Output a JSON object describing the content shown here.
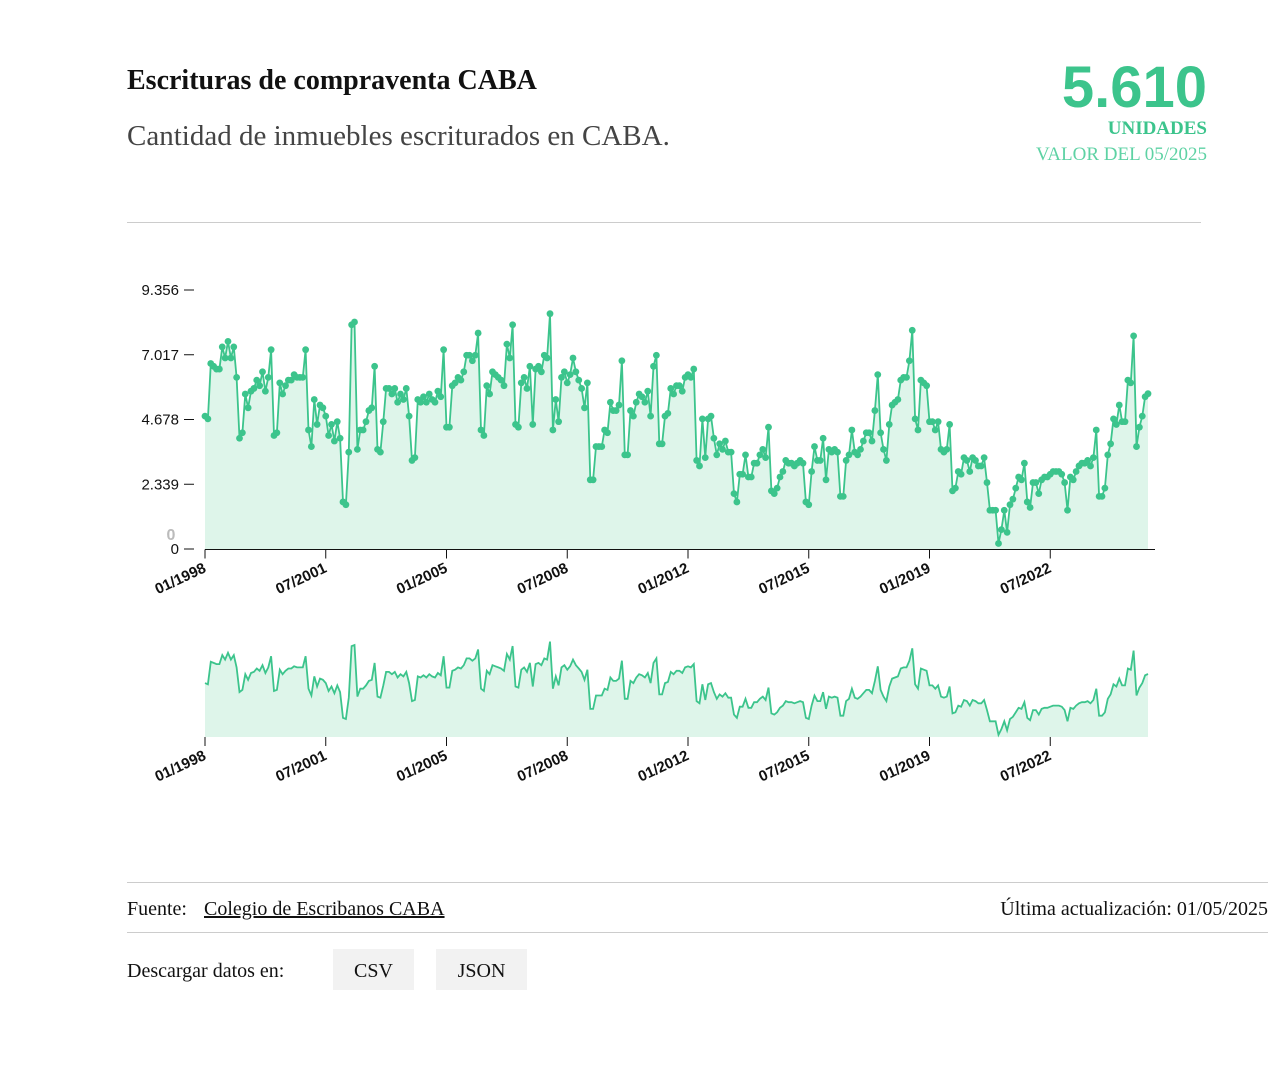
{
  "header": {
    "title": "Escrituras de compraventa CABA",
    "subtitle": "Cantidad de inmuebles escriturados en CABA.",
    "latest_value": {
      "value": 5610,
      "label": "5.610"
    },
    "unit": "UNIDADES",
    "date_note": "VALOR DEL 05/2025"
  },
  "chart_data": {
    "type": "line",
    "color": "#3cc48c",
    "area_color": "#def5ea",
    "markers": true,
    "hover_label": "0",
    "x": [
      "01/1998",
      "02/1998",
      "03/1998",
      "04/1998",
      "05/1998",
      "06/1998",
      "07/1998",
      "08/1998",
      "09/1998",
      "10/1998",
      "11/1998",
      "12/1998",
      "01/1999",
      "02/1999",
      "03/1999",
      "04/1999",
      "05/1999",
      "06/1999",
      "07/1999",
      "08/1999",
      "09/1999",
      "10/1999",
      "11/1999",
      "12/1999",
      "01/2000",
      "02/2000",
      "03/2000",
      "04/2000",
      "05/2000",
      "06/2000",
      "07/2000",
      "08/2000",
      "09/2000",
      "10/2000",
      "11/2000",
      "12/2000",
      "01/2001",
      "02/2001",
      "03/2001",
      "04/2001",
      "05/2001",
      "06/2001",
      "07/2001",
      "08/2001",
      "09/2001",
      "10/2001",
      "11/2001",
      "12/2001",
      "01/2002",
      "02/2002",
      "03/2002",
      "04/2002",
      "05/2002",
      "06/2002",
      "07/2002",
      "08/2002",
      "09/2002",
      "10/2002",
      "11/2002",
      "12/2002",
      "01/2003",
      "02/2003",
      "03/2003",
      "04/2003",
      "05/2003",
      "06/2003",
      "07/2003",
      "08/2003",
      "09/2003",
      "10/2003",
      "11/2003",
      "12/2003",
      "01/2004",
      "02/2004",
      "03/2004",
      "04/2004",
      "05/2004",
      "06/2004",
      "07/2004",
      "08/2004",
      "09/2004",
      "10/2004",
      "11/2004",
      "12/2004",
      "01/2005",
      "02/2005",
      "03/2005",
      "04/2005",
      "05/2005",
      "06/2005",
      "07/2005",
      "08/2005",
      "09/2005",
      "10/2005",
      "11/2005",
      "12/2005",
      "01/2006",
      "02/2006",
      "03/2006",
      "04/2006",
      "05/2006",
      "06/2006",
      "07/2006",
      "08/2006",
      "09/2006",
      "10/2006",
      "11/2006",
      "12/2006",
      "01/2007",
      "02/2007",
      "03/2007",
      "04/2007",
      "05/2007",
      "06/2007",
      "07/2007",
      "08/2007",
      "09/2007",
      "10/2007",
      "11/2007",
      "12/2007",
      "01/2008",
      "02/2008",
      "03/2008",
      "04/2008",
      "05/2008",
      "06/2008",
      "07/2008",
      "08/2008",
      "09/2008",
      "10/2008",
      "11/2008",
      "12/2008",
      "01/2009",
      "02/2009",
      "03/2009",
      "04/2009",
      "05/2009",
      "06/2009",
      "07/2009",
      "08/2009",
      "09/2009",
      "10/2009",
      "11/2009",
      "12/2009",
      "01/2010",
      "02/2010",
      "03/2010",
      "04/2010",
      "05/2010",
      "06/2010",
      "07/2010",
      "08/2010",
      "09/2010",
      "10/2010",
      "11/2010",
      "12/2010",
      "01/2011",
      "02/2011",
      "03/2011",
      "04/2011",
      "05/2011",
      "06/2011",
      "07/2011",
      "08/2011",
      "09/2011",
      "10/2011",
      "11/2011",
      "12/2011",
      "01/2012",
      "02/2012",
      "03/2012",
      "04/2012",
      "05/2012",
      "06/2012",
      "07/2012",
      "08/2012",
      "09/2012",
      "10/2012",
      "11/2012",
      "12/2012",
      "01/2013",
      "02/2013",
      "03/2013",
      "04/2013",
      "05/2013",
      "06/2013",
      "07/2013",
      "08/2013",
      "09/2013",
      "10/2013",
      "11/2013",
      "12/2013",
      "01/2014",
      "02/2014",
      "03/2014",
      "04/2014",
      "05/2014",
      "06/2014",
      "07/2014",
      "08/2014",
      "09/2014",
      "10/2014",
      "11/2014",
      "12/2014",
      "01/2015",
      "02/2015",
      "03/2015",
      "04/2015",
      "05/2015",
      "06/2015",
      "07/2015",
      "08/2015",
      "09/2015",
      "10/2015",
      "11/2015",
      "12/2015",
      "01/2016",
      "02/2016",
      "03/2016",
      "04/2016",
      "05/2016",
      "06/2016",
      "07/2016",
      "08/2016",
      "09/2016",
      "10/2016",
      "11/2016",
      "12/2016",
      "01/2017",
      "02/2017",
      "03/2017",
      "04/2017",
      "05/2017",
      "06/2017",
      "07/2017",
      "08/2017",
      "09/2017",
      "10/2017",
      "11/2017",
      "12/2017",
      "01/2018",
      "02/2018",
      "03/2018",
      "04/2018",
      "05/2018",
      "06/2018",
      "07/2018",
      "08/2018",
      "09/2018",
      "10/2018",
      "11/2018",
      "12/2018",
      "01/2019",
      "02/2019",
      "03/2019",
      "04/2019",
      "05/2019",
      "06/2019",
      "07/2019",
      "08/2019",
      "09/2019",
      "10/2019",
      "11/2019",
      "12/2019",
      "01/2020",
      "02/2020",
      "03/2020",
      "04/2020",
      "05/2020",
      "06/2020",
      "07/2020",
      "08/2020",
      "09/2020",
      "10/2020",
      "11/2020",
      "12/2020",
      "01/2021",
      "02/2021",
      "03/2021",
      "04/2021",
      "05/2021",
      "06/2021",
      "07/2021",
      "08/2021",
      "09/2021",
      "10/2021",
      "11/2021",
      "12/2021",
      "01/2022",
      "02/2022",
      "03/2022",
      "04/2022",
      "05/2022",
      "06/2022",
      "07/2022",
      "08/2022",
      "09/2022",
      "10/2022",
      "11/2022",
      "12/2022",
      "01/2023",
      "02/2023",
      "03/2023",
      "04/2023",
      "05/2023",
      "06/2023",
      "07/2023",
      "08/2023",
      "09/2023",
      "10/2023",
      "11/2023",
      "12/2023",
      "01/2024",
      "02/2024",
      "03/2024",
      "04/2024",
      "05/2024",
      "06/2024",
      "07/2024",
      "08/2024",
      "09/2024",
      "10/2024",
      "11/2024",
      "12/2024",
      "01/2025",
      "02/2025",
      "03/2025",
      "04/2025",
      "05/2025"
    ],
    "values": [
      4800,
      4700,
      6700,
      6600,
      6500,
      6500,
      7300,
      6900,
      7500,
      6900,
      7300,
      6200,
      4000,
      4200,
      5600,
      5100,
      5700,
      5800,
      6100,
      5900,
      6400,
      5700,
      6200,
      7200,
      4100,
      4200,
      6000,
      5600,
      5900,
      6100,
      6100,
      6300,
      6200,
      6200,
      6200,
      7200,
      4300,
      3700,
      5400,
      4500,
      5200,
      5100,
      4800,
      4100,
      4500,
      3900,
      4600,
      4000,
      1700,
      1600,
      3500,
      8100,
      8200,
      3600,
      4300,
      4300,
      4600,
      5000,
      5100,
      6600,
      3600,
      3500,
      4600,
      5800,
      5800,
      5600,
      5800,
      5300,
      5600,
      5400,
      5800,
      4800,
      3200,
      3300,
      5400,
      5300,
      5500,
      5300,
      5600,
      5400,
      5300,
      5700,
      5500,
      7200,
      4400,
      4400,
      5900,
      6000,
      6200,
      6100,
      6400,
      7000,
      7000,
      6800,
      7000,
      7800,
      4300,
      4100,
      5900,
      5600,
      6400,
      6300,
      6200,
      6100,
      5900,
      7400,
      6900,
      8100,
      4500,
      4400,
      6000,
      6200,
      5800,
      6600,
      4500,
      6500,
      6600,
      6400,
      7000,
      6900,
      8500,
      4300,
      5400,
      4600,
      6200,
      6400,
      6000,
      6300,
      6900,
      6400,
      6100,
      5800,
      5100,
      6000,
      2500,
      2500,
      3700,
      3700,
      3700,
      4300,
      4200,
      5300,
      5000,
      5000,
      5200,
      6800,
      3400,
      3400,
      5000,
      4800,
      5300,
      5600,
      5500,
      5300,
      5700,
      4800,
      6600,
      7000,
      3800,
      3800,
      4800,
      4900,
      5800,
      5600,
      5900,
      5900,
      5700,
      6200,
      6300,
      6200,
      6500,
      3200,
      3000,
      4700,
      3300,
      4700,
      4800,
      4000,
      3400,
      3800,
      3600,
      3900,
      3500,
      3500,
      2000,
      1700,
      2700,
      2700,
      3400,
      2600,
      2600,
      3100,
      3100,
      3400,
      3600,
      3300,
      4400,
      2100,
      2000,
      2200,
      2600,
      2800,
      3200,
      3100,
      3100,
      3000,
      3100,
      3200,
      3100,
      1700,
      1600,
      2800,
      3700,
      3200,
      3200,
      4000,
      2500,
      3600,
      3500,
      3600,
      3500,
      1900,
      1900,
      3200,
      3400,
      4300,
      3500,
      3400,
      3600,
      3900,
      4200,
      4200,
      3900,
      5000,
      6300,
      4200,
      3600,
      3200,
      4500,
      5200,
      5300,
      5400,
      6100,
      6200,
      6200,
      6800,
      7900,
      4700,
      4300,
      6100,
      6000,
      5900,
      4600,
      4600,
      4300,
      4600,
      3600,
      3500,
      3600,
      4500,
      2100,
      2200,
      2800,
      2700,
      3300,
      3200,
      2800,
      3300,
      3200,
      3000,
      3000,
      3300,
      2400,
      1400,
      1400,
      1400,
      200,
      700,
      1400,
      600,
      1600,
      1800,
      2200,
      2600,
      2500,
      3100,
      1700,
      1500,
      2400,
      2400,
      2000,
      2500,
      2600,
      2600,
      2700,
      2800,
      2800,
      2800,
      2700,
      2400,
      1400,
      2600,
      2500,
      2800,
      3000,
      3100,
      3100,
      3200,
      3000,
      3300,
      4300,
      1900,
      1900,
      2200,
      3400,
      3800,
      4700,
      4500,
      5200,
      4600,
      4600,
      6100,
      6000,
      7700,
      3700,
      4400,
      4800,
      5500,
      5610
    ],
    "xlim": [
      "01/1998",
      "05/2025"
    ],
    "xticks": [
      "01/1998",
      "07/2001",
      "01/2005",
      "07/2008",
      "01/2012",
      "07/2015",
      "01/2019",
      "07/2022"
    ],
    "ylim": [
      0,
      9356
    ],
    "yticks": [
      0,
      {
        "value": 2339,
        "label": "2.339"
      },
      {
        "value": 4678,
        "label": "4.678"
      },
      {
        "value": 7017,
        "label": "7.017"
      },
      {
        "value": 9356,
        "label": "9.356"
      }
    ]
  },
  "footer": {
    "source_label": "Fuente:",
    "source_link": "Colegio de Escribanos CABA",
    "updated": "Última actualización: 01/05/2025",
    "download_label": "Descargar datos en:",
    "buttons": [
      "CSV",
      "JSON"
    ]
  }
}
